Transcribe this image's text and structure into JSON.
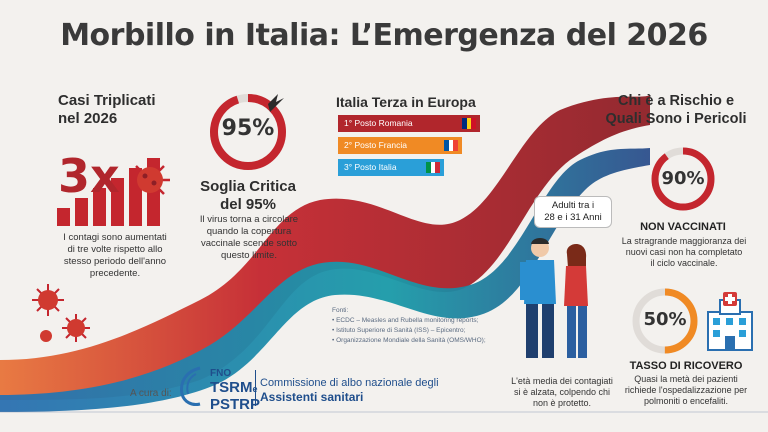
{
  "title": "Morbillo in Italia: L’Emergenza del 2026",
  "triple": {
    "heading_line1": "Casi Triplicati",
    "heading_line2": "nel 2026",
    "big": "3x",
    "text": [
      "I contagi sono aumentati",
      "di tre volte rispetto allo",
      "stesso periodo dell'anno",
      "precedente."
    ]
  },
  "threshold": {
    "percent_label": "95%",
    "percent_value": 95,
    "heading_line1": "Soglia Critica",
    "heading_line2": "del 95%",
    "text": [
      "Il virus torna a circolare",
      "quando la copertura",
      "vaccinale scende sotto",
      "questo limite."
    ]
  },
  "europe": {
    "heading": "Italia Terza in Europa",
    "ranks": [
      {
        "label": "1° Posto Romania",
        "color": "#b1262c"
      },
      {
        "label": "2° Posto Francia",
        "color": "#f08a24"
      },
      {
        "label": "3° Posto Italia",
        "color": "#2a9fd8"
      }
    ]
  },
  "risk": {
    "heading_line1": "Chi è a Rischio e",
    "heading_line2": "Quali Sono i Pericoli",
    "bubble_line1": "Adulti tra i",
    "bubble_line2": "28 e i 31 Anni",
    "people_text": [
      "L'età media dei contagiati",
      "si è alzata, colpendo chi",
      "non è protetto."
    ],
    "unvaccinated_pct_label": "90%",
    "unvaccinated_pct": 90,
    "unvaccinated_heading": "NON VACCINATI",
    "unvaccinated_text": [
      "La stragrande maggioranza dei",
      "nuovi casi non ha completato",
      "il ciclo vaccinale."
    ],
    "hospital_pct_label": "50%",
    "hospital_pct": 50,
    "hospital_heading": "TASSO DI RICOVERO",
    "hospital_text": [
      "Quasi la metà dei pazienti",
      "richiede l'ospedalizzazione per",
      "polmoniti o encefaliti."
    ]
  },
  "sources": {
    "label": "Fonti:",
    "items": [
      "ECDC – Measles and Rubella monitoring reports;",
      "Istituto Superiore di Sanità (ISS) – Epicentro;",
      "Organizzazione Mondiale della Sanità (OMS/WHO);"
    ]
  },
  "footer": {
    "curated_by": "A cura di:",
    "logo_line1": "FNO",
    "logo_line2a": "TSRM",
    "logo_e": "e",
    "logo_line3": "PSTRP",
    "commission_line1": "Commissione di albo nazionale degli",
    "commission_line2": "Assistenti sanitari"
  },
  "colors": {
    "red": "#c4262e",
    "dark_red": "#8e1f26",
    "orange": "#f08a24",
    "blue": "#2a6fb0",
    "teal": "#1a9aa8"
  }
}
